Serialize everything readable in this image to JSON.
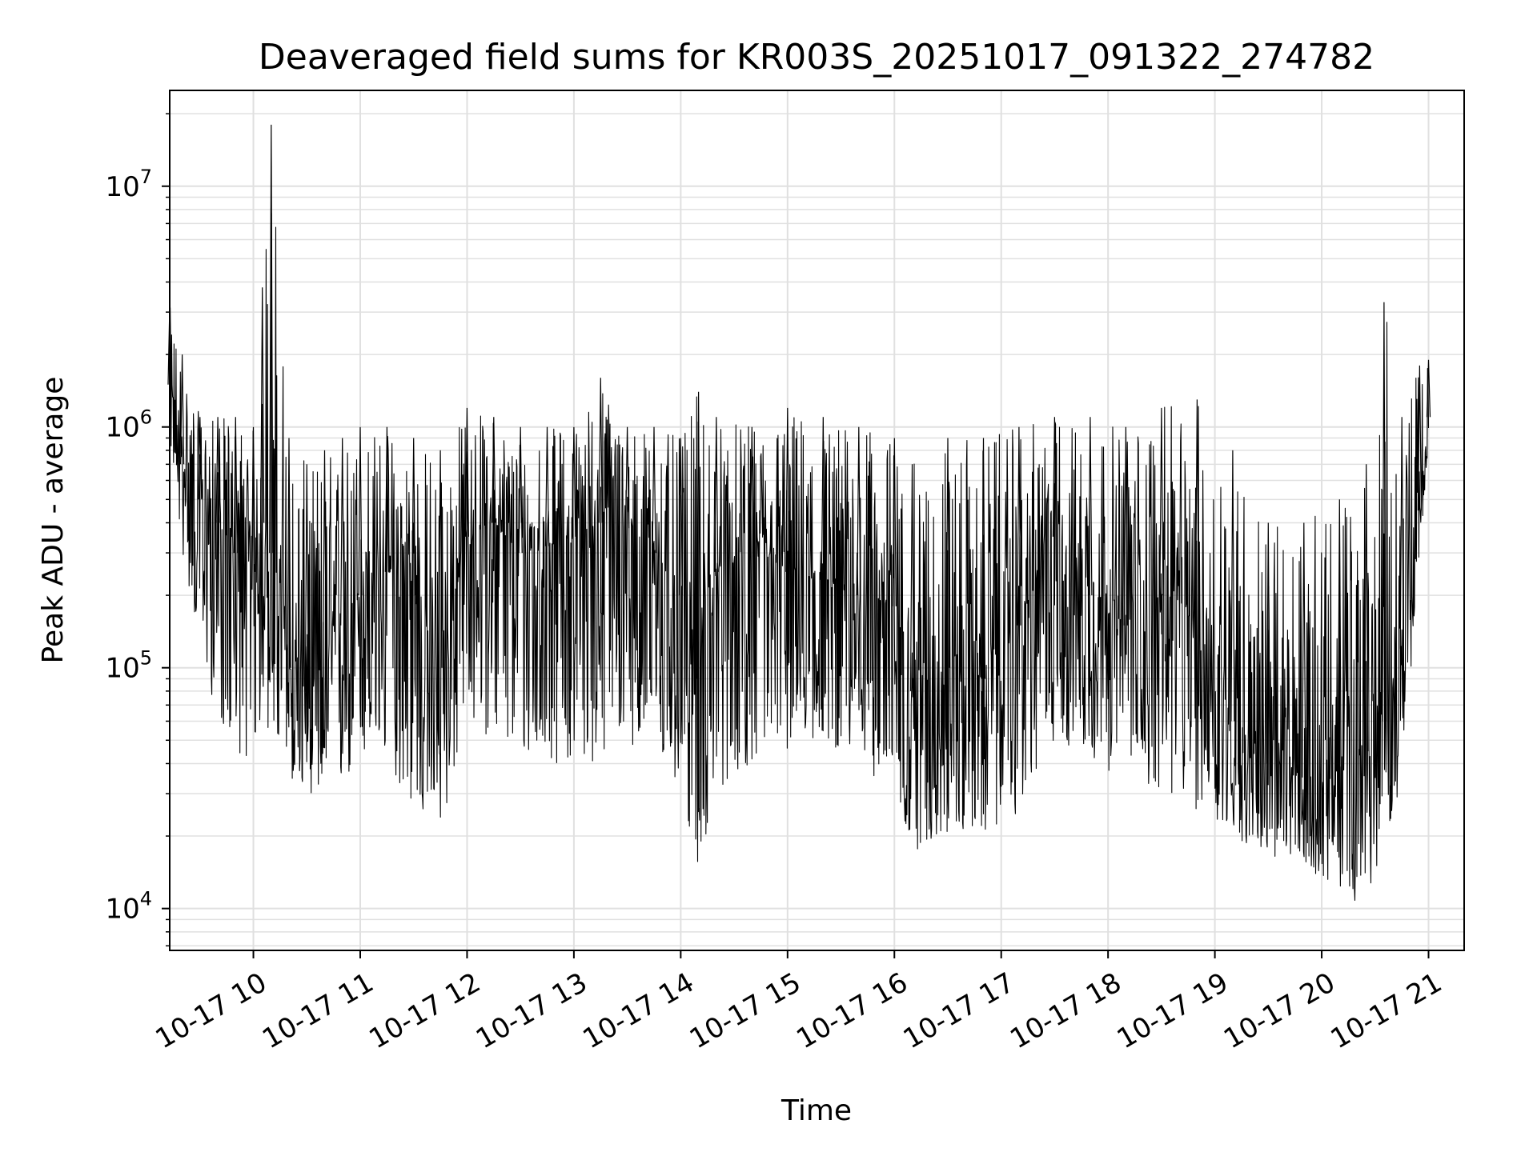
{
  "chart_data": {
    "type": "line",
    "title": "Deaveraged field sums for KR003S_20251017_091322_274782",
    "xlabel": "Time",
    "ylabel": "Peak ADU - average",
    "y_scale": "log",
    "ylim": [
      6700,
      25000000
    ],
    "xlim": [
      "2025-10-17 09:13",
      "2025-10-17 21:00"
    ],
    "grid": true,
    "x_ticks": [
      "10-17 10",
      "10-17 11",
      "10-17 12",
      "10-17 13",
      "10-17 14",
      "10-17 15",
      "10-17 16",
      "10-17 17",
      "10-17 18",
      "10-17 19",
      "10-17 20",
      "10-17 21"
    ],
    "y_ticks": [
      {
        "value": 10000,
        "base": "10",
        "exp": "4"
      },
      {
        "value": 100000,
        "base": "10",
        "exp": "5"
      },
      {
        "value": 1000000,
        "base": "10",
        "exp": "6"
      },
      {
        "value": 10000000,
        "base": "10",
        "exp": "7"
      }
    ],
    "line_color": "#000000",
    "grid_color": "#e0e0e0",
    "series": [
      {
        "x": [
          "2025-10-17 09:13",
          "2025-10-17 09:20",
          "2025-10-17 09:30",
          "2025-10-17 09:40",
          "2025-10-17 09:50",
          "2025-10-17 10:00",
          "2025-10-17 10:05",
          "2025-10-17 10:10",
          "2025-10-17 10:20",
          "2025-10-17 10:30",
          "2025-10-17 10:40",
          "2025-10-17 10:50",
          "2025-10-17 11:00",
          "2025-10-17 11:15",
          "2025-10-17 11:30",
          "2025-10-17 11:45",
          "2025-10-17 12:00",
          "2025-10-17 12:15",
          "2025-10-17 12:30",
          "2025-10-17 12:45",
          "2025-10-17 13:00",
          "2025-10-17 13:15",
          "2025-10-17 13:30",
          "2025-10-17 13:45",
          "2025-10-17 14:00",
          "2025-10-17 14:10",
          "2025-10-17 14:20",
          "2025-10-17 14:40",
          "2025-10-17 15:00",
          "2025-10-17 15:20",
          "2025-10-17 15:40",
          "2025-10-17 16:00",
          "2025-10-17 16:10",
          "2025-10-17 16:30",
          "2025-10-17 16:50",
          "2025-10-17 17:10",
          "2025-10-17 17:30",
          "2025-10-17 17:50",
          "2025-10-17 18:10",
          "2025-10-17 18:30",
          "2025-10-17 18:50",
          "2025-10-17 19:10",
          "2025-10-17 19:30",
          "2025-10-17 19:50",
          "2025-10-17 20:10",
          "2025-10-17 20:25",
          "2025-10-17 20:35",
          "2025-10-17 20:45",
          "2025-10-17 20:55",
          "2025-10-17 21:00"
        ],
        "y": [
          1500000,
          700000,
          500000,
          400000,
          300000,
          250000,
          400000,
          300000,
          100000,
          80000,
          90000,
          150000,
          200000,
          250000,
          200000,
          100000,
          350000,
          400000,
          300000,
          320000,
          350000,
          400000,
          380000,
          300000,
          200000,
          90000,
          250000,
          300000,
          250000,
          220000,
          200000,
          180000,
          80000,
          100000,
          90000,
          150000,
          350000,
          200000,
          150000,
          200000,
          150000,
          60000,
          40000,
          35000,
          35000,
          45000,
          60000,
          120000,
          450000,
          1100000
        ],
        "y_min": [
          900000,
          300000,
          120000,
          60000,
          45000,
          40000,
          60000,
          50000,
          35000,
          30000,
          30000,
          30000,
          40000,
          40000,
          25000,
          20000,
          60000,
          50000,
          40000,
          40000,
          40000,
          40000,
          50000,
          40000,
          30000,
          14000,
          30000,
          40000,
          45000,
          50000,
          40000,
          30000,
          17000,
          20000,
          20000,
          25000,
          50000,
          40000,
          35000,
          30000,
          25000,
          20000,
          16000,
          15000,
          12000,
          10000,
          20000,
          30000,
          300000,
          800000
        ],
        "y_max": [
          3200000,
          2000000,
          1100000,
          1100000,
          1100000,
          1000000,
          3800000,
          18000000,
          900000,
          700000,
          800000,
          900000,
          1000000,
          1000000,
          900000,
          800000,
          1200000,
          1100000,
          1000000,
          1000000,
          1000000,
          1600000,
          1000000,
          1000000,
          900000,
          1400000,
          1100000,
          1000000,
          1200000,
          1100000,
          1000000,
          900000,
          700000,
          900000,
          900000,
          1000000,
          1100000,
          1100000,
          1000000,
          1200000,
          1300000,
          800000,
          400000,
          400000,
          500000,
          700000,
          3300000,
          1100000,
          1800000,
          1900000
        ]
      }
    ]
  }
}
